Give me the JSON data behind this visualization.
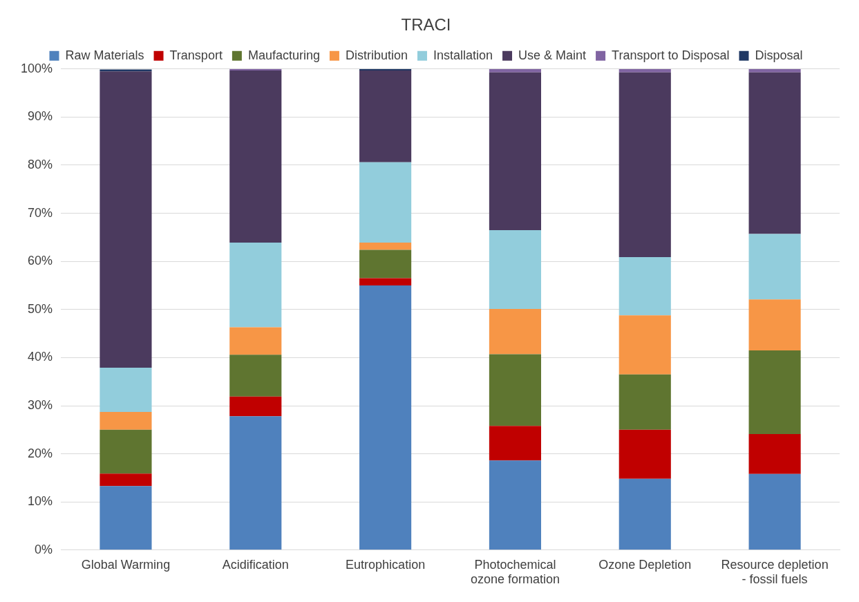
{
  "chart_data": {
    "type": "bar",
    "title": "TRACI",
    "stacked": true,
    "legend": "top",
    "grid": "y",
    "categories": [
      "Global Warming",
      "Acidification",
      "Eutrophication",
      "Photochemical ozone formation",
      "Ozone Depletion",
      "Resource depletion - fossil fuels"
    ],
    "ylim": [
      0,
      100
    ],
    "yticks": [
      {
        "value": 0,
        "label": "0%"
      },
      {
        "value": 10,
        "label": "10%"
      },
      {
        "value": 20,
        "label": "20%"
      },
      {
        "value": 30,
        "label": "30%"
      },
      {
        "value": 40,
        "label": "40%"
      },
      {
        "value": 50,
        "label": "50%"
      },
      {
        "value": 60,
        "label": "60%"
      },
      {
        "value": 70,
        "label": "70%"
      },
      {
        "value": 80,
        "label": "80%"
      },
      {
        "value": 90,
        "label": "90%"
      },
      {
        "value": 100,
        "label": "100%"
      }
    ],
    "series": [
      {
        "name": "Raw Materials",
        "color": "#4f81bd",
        "values": [
          13.3,
          27.8,
          55.0,
          18.6,
          14.8,
          15.8
        ]
      },
      {
        "name": "Transport",
        "color": "#c00000",
        "values": [
          2.6,
          4.1,
          1.5,
          7.2,
          10.2,
          8.3
        ]
      },
      {
        "name": "Maufacturing",
        "color": "#5f7530",
        "values": [
          9.1,
          8.7,
          5.9,
          14.9,
          11.5,
          17.4
        ]
      },
      {
        "name": "Distribution",
        "color": "#f79646",
        "values": [
          3.7,
          5.7,
          1.5,
          9.4,
          12.3,
          10.6
        ]
      },
      {
        "name": "Installation",
        "color": "#92cddc",
        "values": [
          9.2,
          17.6,
          16.7,
          16.4,
          12.1,
          13.6
        ]
      },
      {
        "name": "Use & Maint",
        "color": "#4b3a5e",
        "values": [
          61.6,
          35.8,
          19.1,
          32.8,
          38.4,
          33.6
        ]
      },
      {
        "name": "Transport to Disposal",
        "color": "#8064a2",
        "values": [
          null,
          0.3,
          0.0,
          0.7,
          0.7,
          0.7
        ]
      },
      {
        "name": "Disposal",
        "color": "#1f3864",
        "values": [
          0.4,
          0.0,
          0.3,
          0.0,
          0.0,
          0.0
        ]
      }
    ]
  }
}
